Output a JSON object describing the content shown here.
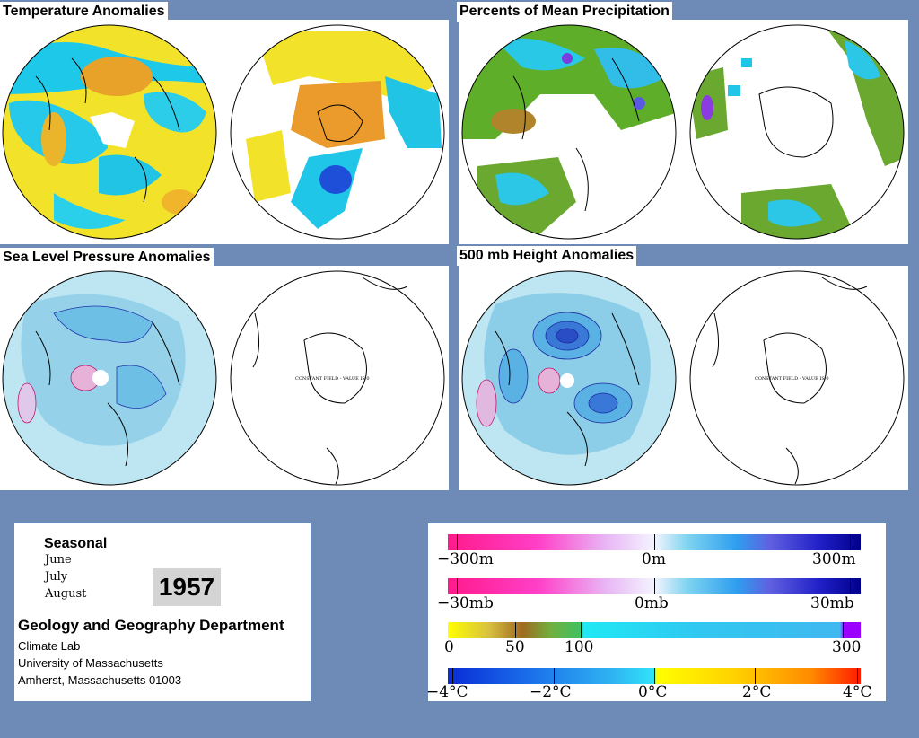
{
  "panels": {
    "temperature": {
      "title": "Temperature Anomalies"
    },
    "precipitation": {
      "title": "Percents of Mean Precipitation"
    },
    "slp": {
      "title": "Sea Level Pressure Anomalies"
    },
    "height500": {
      "title": "500 mb Height Anomalies"
    }
  },
  "constant_field_label": "CONSTANT FIELD - VALUE IS 0",
  "info": {
    "season_label": "Seasonal",
    "months": [
      "June",
      "July",
      "August"
    ],
    "year": "1957",
    "department": "Geology and Geography Department",
    "address_lines": [
      "Climate Lab",
      "University of Massachusetts",
      "Amherst, Massachusetts 01003"
    ]
  },
  "legend": {
    "height": {
      "labels": {
        "min": "−300m",
        "mid": "0m",
        "max": "300m"
      }
    },
    "pressure": {
      "labels": {
        "min": "−30mb",
        "mid": "0mb",
        "max": "30mb"
      }
    },
    "precip": {
      "labels": {
        "a": "0",
        "b": "50",
        "c": "100",
        "d": "300"
      }
    },
    "temp": {
      "labels": {
        "a": "−4°C",
        "b": "−2°C",
        "c": "0°C",
        "d": "2°C",
        "e": "4°C"
      }
    }
  },
  "colors": {
    "background": "#6e8bb8",
    "anomaly_negative": "#ff1a8c",
    "anomaly_positive": "#00008c",
    "precip_dry": "#ffff00",
    "precip_wet": "#9b00ff",
    "temp_cold": "#0a2bd6",
    "temp_warm": "#ff1a00"
  }
}
